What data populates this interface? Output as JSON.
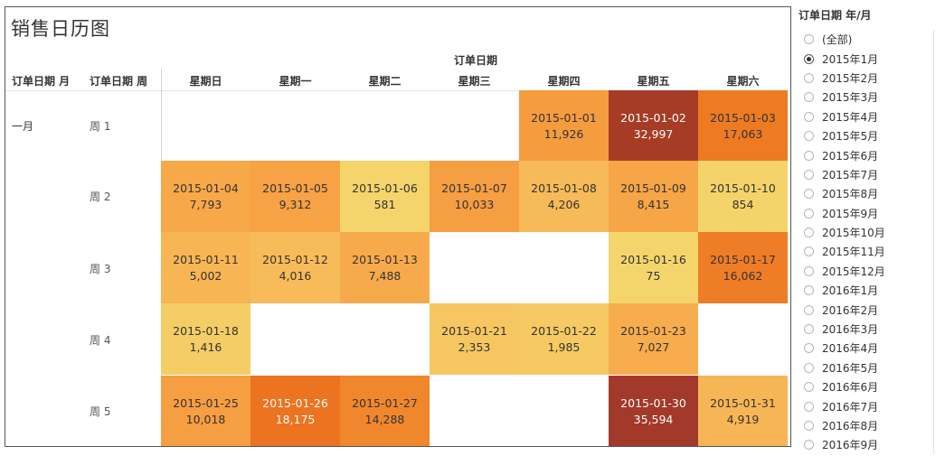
{
  "title": "销售日历图",
  "col_header": "订单日期",
  "row_headers": [
    "订单日期 月",
    "订单日期 周"
  ],
  "days": [
    "星期日",
    "星期一",
    "星期二",
    "星期三",
    "星期四",
    "星期五",
    "星期六"
  ],
  "month": "一月",
  "weeks": [
    "周 1",
    "周 2",
    "周 3",
    "周 4",
    "周 5"
  ],
  "cells": [
    {
      "date": "2015-01-01",
      "value": "11,926",
      "week": 0,
      "day": 4,
      "color": "#f59c3f"
    },
    {
      "date": "2015-01-02",
      "value": "32,997",
      "week": 0,
      "day": 5,
      "color": "#a63c25",
      "light": true
    },
    {
      "date": "2015-01-03",
      "value": "17,063",
      "week": 0,
      "day": 6,
      "color": "#ee7a22"
    },
    {
      "date": "2015-01-04",
      "value": "7,793",
      "week": 1,
      "day": 0,
      "color": "#f7a849"
    },
    {
      "date": "2015-01-05",
      "value": "9,312",
      "week": 1,
      "day": 1,
      "color": "#f6a245"
    },
    {
      "date": "2015-01-06",
      "value": "581",
      "week": 1,
      "day": 2,
      "color": "#f4d46b"
    },
    {
      "date": "2015-01-07",
      "value": "10,033",
      "week": 1,
      "day": 3,
      "color": "#f59e42"
    },
    {
      "date": "2015-01-08",
      "value": "4,206",
      "week": 1,
      "day": 4,
      "color": "#f7ba58"
    },
    {
      "date": "2015-01-09",
      "value": "8,415",
      "week": 1,
      "day": 5,
      "color": "#f6a547"
    },
    {
      "date": "2015-01-10",
      "value": "854",
      "week": 1,
      "day": 6,
      "color": "#f4d36a"
    },
    {
      "date": "2015-01-11",
      "value": "5,002",
      "week": 2,
      "day": 0,
      "color": "#f7b554"
    },
    {
      "date": "2015-01-12",
      "value": "4,016",
      "week": 2,
      "day": 1,
      "color": "#f7bb59"
    },
    {
      "date": "2015-01-13",
      "value": "7,488",
      "week": 2,
      "day": 2,
      "color": "#f7aa4b"
    },
    {
      "date": "2015-01-16",
      "value": "75",
      "week": 2,
      "day": 5,
      "color": "#f4d56c"
    },
    {
      "date": "2015-01-17",
      "value": "16,062",
      "week": 2,
      "day": 6,
      "color": "#ef7d25"
    },
    {
      "date": "2015-01-18",
      "value": "1,416",
      "week": 3,
      "day": 0,
      "color": "#f5cd66"
    },
    {
      "date": "2015-01-21",
      "value": "2,353",
      "week": 3,
      "day": 3,
      "color": "#f6c660"
    },
    {
      "date": "2015-01-22",
      "value": "1,985",
      "week": 3,
      "day": 4,
      "color": "#f6c962"
    },
    {
      "date": "2015-01-23",
      "value": "7,027",
      "week": 3,
      "day": 5,
      "color": "#f7ac4d"
    },
    {
      "date": "2015-01-25",
      "value": "10,018",
      "week": 4,
      "day": 0,
      "color": "#f59e42"
    },
    {
      "date": "2015-01-26",
      "value": "18,175",
      "week": 4,
      "day": 1,
      "color": "#ec7320",
      "light": true
    },
    {
      "date": "2015-01-27",
      "value": "14,288",
      "week": 4,
      "day": 2,
      "color": "#f1872c"
    },
    {
      "date": "2015-01-30",
      "value": "35,594",
      "week": 4,
      "day": 5,
      "color": "#a3392a",
      "light": true
    },
    {
      "date": "2015-01-31",
      "value": "4,919",
      "week": 4,
      "day": 6,
      "color": "#f7b655"
    }
  ],
  "filter": {
    "title": "订单日期 年/月",
    "selected": 1,
    "options": [
      "(全部)",
      "2015年1月",
      "2015年2月",
      "2015年3月",
      "2015年4月",
      "2015年5月",
      "2015年6月",
      "2015年7月",
      "2015年8月",
      "2015年9月",
      "2015年10月",
      "2015年11月",
      "2015年12月",
      "2016年1月",
      "2016年2月",
      "2016年3月",
      "2016年4月",
      "2016年5月",
      "2016年6月",
      "2016年7月",
      "2016年8月",
      "2016年9月"
    ]
  }
}
